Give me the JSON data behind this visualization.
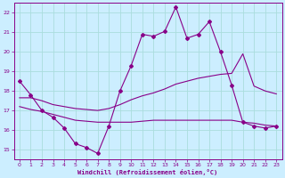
{
  "xlabel": "Windchill (Refroidissement éolien,°C)",
  "background_color": "#cceeff",
  "grid_color": "#aadddd",
  "line_color": "#880088",
  "xlim": [
    -0.5,
    23.5
  ],
  "ylim": [
    14.5,
    22.5
  ],
  "xticks": [
    0,
    1,
    2,
    3,
    4,
    5,
    6,
    7,
    8,
    9,
    10,
    11,
    12,
    13,
    14,
    15,
    16,
    17,
    18,
    19,
    20,
    21,
    22,
    23
  ],
  "yticks": [
    15,
    16,
    17,
    18,
    19,
    20,
    21,
    22
  ],
  "line1_x": [
    0,
    1,
    2,
    3,
    4,
    5,
    6,
    7,
    8,
    9,
    10,
    11,
    12,
    13,
    14,
    15,
    16,
    17,
    18,
    19,
    20,
    21,
    22,
    23
  ],
  "line1_y": [
    18.5,
    17.8,
    17.0,
    16.65,
    16.1,
    15.3,
    15.1,
    14.8,
    16.2,
    18.0,
    19.3,
    20.9,
    20.8,
    21.05,
    22.3,
    20.7,
    20.9,
    21.55,
    20.0,
    18.3,
    16.4,
    16.2,
    16.1,
    16.2
  ],
  "line2_x": [
    0,
    1,
    2,
    3,
    4,
    5,
    6,
    7,
    8,
    9,
    10,
    11,
    12,
    13,
    14,
    15,
    16,
    17,
    18,
    19,
    20,
    21,
    22,
    23
  ],
  "line2_y": [
    17.65,
    17.65,
    17.5,
    17.3,
    17.2,
    17.1,
    17.05,
    17.0,
    17.1,
    17.3,
    17.55,
    17.75,
    17.9,
    18.1,
    18.35,
    18.5,
    18.65,
    18.75,
    18.85,
    18.9,
    19.9,
    18.25,
    18.0,
    17.85
  ],
  "line3_x": [
    0,
    1,
    2,
    3,
    4,
    5,
    6,
    7,
    8,
    9,
    10,
    11,
    12,
    13,
    14,
    15,
    16,
    17,
    18,
    19,
    20,
    21,
    22,
    23
  ],
  "line3_y": [
    17.2,
    17.05,
    16.95,
    16.8,
    16.65,
    16.5,
    16.45,
    16.4,
    16.4,
    16.4,
    16.4,
    16.45,
    16.5,
    16.5,
    16.5,
    16.5,
    16.5,
    16.5,
    16.5,
    16.5,
    16.4,
    16.35,
    16.25,
    16.2
  ]
}
